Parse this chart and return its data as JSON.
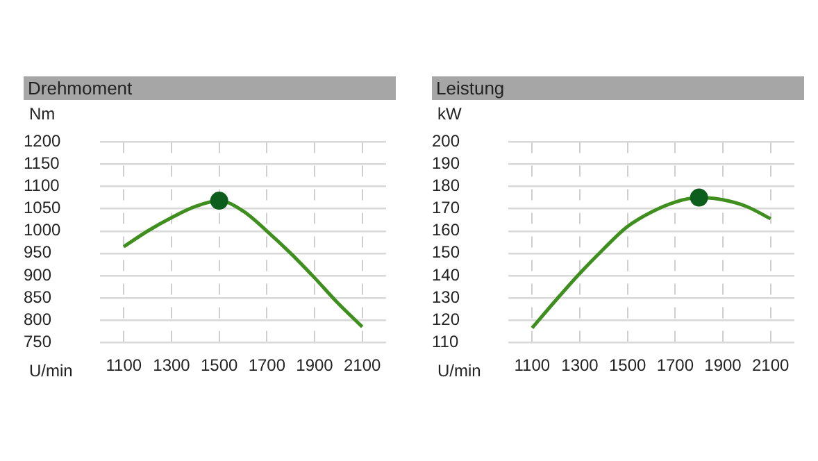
{
  "chart_data": [
    {
      "type": "line",
      "title": "Drehmoment",
      "ylabel": "Nm",
      "xlabel": "U/min",
      "x": [
        1100,
        1200,
        1300,
        1400,
        1500,
        1600,
        1700,
        1800,
        1900,
        2000,
        2100
      ],
      "xlim": [
        1000,
        2200
      ],
      "xticks": [
        1100,
        1300,
        1500,
        1700,
        1900,
        2100
      ],
      "ylim": [
        750,
        1200
      ],
      "yticks": [
        750,
        800,
        850,
        900,
        950,
        1000,
        1050,
        1100,
        1150,
        1200
      ],
      "grid": true,
      "legend": false,
      "marker": "none",
      "line_style": "solid",
      "series": [
        {
          "color": "#3f8f1f",
          "values": [
            965,
            1000,
            1030,
            1055,
            1068,
            1045,
            1000,
            950,
            895,
            837,
            785
          ]
        },
        {
          "type": "scatter",
          "color": "#0d5e1c",
          "marker": "circle",
          "x": [
            1500
          ],
          "values": [
            1068
          ]
        }
      ]
    },
    {
      "type": "line",
      "title": "Leistung",
      "ylabel": "kW",
      "xlabel": "U/min",
      "x": [
        1100,
        1200,
        1300,
        1400,
        1500,
        1600,
        1700,
        1800,
        1900,
        2000,
        2100
      ],
      "xlim": [
        1000,
        2200
      ],
      "xticks": [
        1100,
        1300,
        1500,
        1700,
        1900,
        2100
      ],
      "ylim": [
        110,
        200
      ],
      "yticks": [
        110,
        120,
        130,
        140,
        150,
        160,
        170,
        180,
        190,
        200
      ],
      "grid": true,
      "legend": false,
      "marker": "none",
      "line_style": "solid",
      "series": [
        {
          "color": "#3f8f1f",
          "values": [
            116.5,
            129,
            141,
            152,
            162,
            168.5,
            173,
            175,
            174,
            171,
            165.5
          ]
        },
        {
          "type": "scatter",
          "color": "#0d5e1c",
          "marker": "circle",
          "x": [
            1800
          ],
          "values": [
            175
          ]
        }
      ]
    }
  ]
}
